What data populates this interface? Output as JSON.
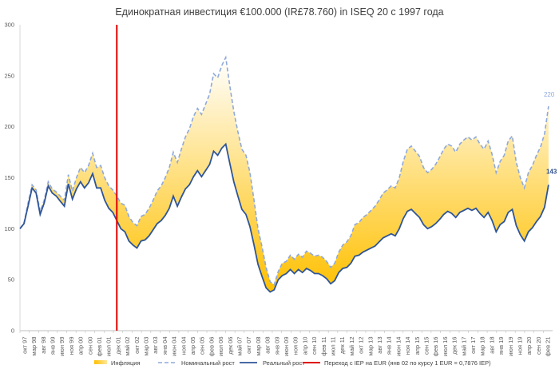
{
  "chart_data": {
    "type": "line",
    "title": "Единократная инвестиция  €100.000 (IR£78.760) in ISEQ 20 с 1997 года",
    "ylim": [
      0,
      300
    ],
    "yticks": [
      "0",
      "50",
      "100",
      "150",
      "200",
      "250",
      "300"
    ],
    "x_tick_labels": [
      "окт 97",
      "мар 98",
      "авг 98",
      "янв 99",
      "июн 99",
      "ноя 99",
      "апр 00",
      "сен 00",
      "фев 01",
      "июл 01",
      "дек 01",
      "май 02",
      "окт 02",
      "мар 03",
      "авг 03",
      "янв 04",
      "июн 04",
      "ноя 04",
      "апр 05",
      "сен 05",
      "фев 06",
      "июл 06",
      "дек 06",
      "май 07",
      "окт 07",
      "мар 08",
      "авг 08",
      "янв 09",
      "июн 09",
      "ноя 09",
      "апр 10",
      "сен 10",
      "фев 11",
      "июл 11",
      "дек 11",
      "май 12",
      "окт 12",
      "мар 13",
      "авг 13",
      "янв 14",
      "июн 14",
      "ноя 14",
      "апр 15",
      "сен 15",
      "фев 16",
      "июл 16",
      "дек 16",
      "май 17",
      "окт 17",
      "мар 18",
      "авг 18",
      "янв 19",
      "июн 19",
      "ноя 19",
      "апр 20",
      "сен 20",
      "фев 21"
    ],
    "series": [
      {
        "name": "Номинальный рост",
        "color": "#8FA9DB",
        "style": "dashed",
        "points": [
          [
            0,
            100
          ],
          [
            2,
            106
          ],
          [
            4,
            125
          ],
          [
            6,
            143
          ],
          [
            8,
            138
          ],
          [
            10,
            117
          ],
          [
            12,
            128
          ],
          [
            14,
            146
          ],
          [
            16,
            139
          ],
          [
            18,
            136
          ],
          [
            20,
            132
          ],
          [
            22,
            128
          ],
          [
            24,
            153
          ],
          [
            26,
            137
          ],
          [
            28,
            150
          ],
          [
            30,
            160
          ],
          [
            32,
            155
          ],
          [
            34,
            162
          ],
          [
            36,
            174
          ],
          [
            38,
            160
          ],
          [
            40,
            162
          ],
          [
            42,
            150
          ],
          [
            44,
            142
          ],
          [
            46,
            138
          ],
          [
            48,
            132
          ],
          [
            50,
            125
          ],
          [
            52,
            123
          ],
          [
            54,
            112
          ],
          [
            56,
            106
          ],
          [
            58,
            103
          ],
          [
            60,
            112
          ],
          [
            62,
            114
          ],
          [
            64,
            120
          ],
          [
            66,
            128
          ],
          [
            68,
            137
          ],
          [
            70,
            142
          ],
          [
            72,
            150
          ],
          [
            74,
            160
          ],
          [
            76,
            175
          ],
          [
            78,
            165
          ],
          [
            80,
            178
          ],
          [
            82,
            190
          ],
          [
            84,
            198
          ],
          [
            86,
            210
          ],
          [
            88,
            218
          ],
          [
            90,
            212
          ],
          [
            92,
            222
          ],
          [
            94,
            232
          ],
          [
            96,
            252
          ],
          [
            98,
            248
          ],
          [
            100,
            260
          ],
          [
            102,
            268
          ],
          [
            104,
            240
          ],
          [
            106,
            215
          ],
          [
            108,
            195
          ],
          [
            110,
            178
          ],
          [
            112,
            172
          ],
          [
            114,
            155
          ],
          [
            116,
            128
          ],
          [
            118,
            100
          ],
          [
            120,
            82
          ],
          [
            122,
            62
          ],
          [
            124,
            48
          ],
          [
            126,
            45
          ],
          [
            128,
            58
          ],
          [
            130,
            66
          ],
          [
            132,
            68
          ],
          [
            134,
            74
          ],
          [
            136,
            70
          ],
          [
            138,
            75
          ],
          [
            140,
            72
          ],
          [
            142,
            78
          ],
          [
            144,
            76
          ],
          [
            146,
            73
          ],
          [
            148,
            74
          ],
          [
            150,
            72
          ],
          [
            152,
            68
          ],
          [
            154,
            62
          ],
          [
            156,
            66
          ],
          [
            158,
            77
          ],
          [
            160,
            84
          ],
          [
            162,
            87
          ],
          [
            164,
            93
          ],
          [
            166,
            104
          ],
          [
            168,
            106
          ],
          [
            170,
            111
          ],
          [
            172,
            114
          ],
          [
            174,
            118
          ],
          [
            176,
            122
          ],
          [
            178,
            128
          ],
          [
            180,
            135
          ],
          [
            182,
            138
          ],
          [
            184,
            142
          ],
          [
            186,
            140
          ],
          [
            188,
            150
          ],
          [
            190,
            166
          ],
          [
            192,
            178
          ],
          [
            194,
            181
          ],
          [
            196,
            176
          ],
          [
            198,
            171
          ],
          [
            200,
            160
          ],
          [
            202,
            155
          ],
          [
            204,
            158
          ],
          [
            206,
            163
          ],
          [
            208,
            170
          ],
          [
            210,
            178
          ],
          [
            212,
            183
          ],
          [
            214,
            181
          ],
          [
            216,
            175
          ],
          [
            218,
            183
          ],
          [
            220,
            187
          ],
          [
            222,
            190
          ],
          [
            224,
            187
          ],
          [
            226,
            190
          ],
          [
            228,
            183
          ],
          [
            230,
            178
          ],
          [
            232,
            186
          ],
          [
            234,
            173
          ],
          [
            236,
            155
          ],
          [
            238,
            166
          ],
          [
            240,
            172
          ],
          [
            242,
            186
          ],
          [
            244,
            191
          ],
          [
            246,
            165
          ],
          [
            248,
            150
          ],
          [
            250,
            140
          ],
          [
            252,
            155
          ],
          [
            254,
            162
          ],
          [
            256,
            172
          ],
          [
            258,
            180
          ],
          [
            260,
            193
          ],
          [
            262,
            220
          ]
        ]
      },
      {
        "name": "Реальный рост",
        "color": "#2F5597",
        "style": "solid",
        "points": [
          [
            0,
            100
          ],
          [
            2,
            105
          ],
          [
            4,
            122
          ],
          [
            6,
            140
          ],
          [
            8,
            135
          ],
          [
            10,
            114
          ],
          [
            12,
            125
          ],
          [
            14,
            142
          ],
          [
            16,
            135
          ],
          [
            18,
            132
          ],
          [
            20,
            127
          ],
          [
            22,
            122
          ],
          [
            24,
            144
          ],
          [
            26,
            129
          ],
          [
            28,
            139
          ],
          [
            30,
            146
          ],
          [
            32,
            140
          ],
          [
            34,
            145
          ],
          [
            36,
            154
          ],
          [
            38,
            140
          ],
          [
            40,
            140
          ],
          [
            42,
            128
          ],
          [
            44,
            120
          ],
          [
            46,
            116
          ],
          [
            48,
            108
          ],
          [
            50,
            100
          ],
          [
            52,
            97
          ],
          [
            54,
            88
          ],
          [
            56,
            84
          ],
          [
            58,
            81
          ],
          [
            60,
            88
          ],
          [
            62,
            89
          ],
          [
            64,
            93
          ],
          [
            66,
            99
          ],
          [
            68,
            105
          ],
          [
            70,
            108
          ],
          [
            72,
            113
          ],
          [
            74,
            120
          ],
          [
            76,
            132
          ],
          [
            78,
            122
          ],
          [
            80,
            131
          ],
          [
            82,
            139
          ],
          [
            84,
            143
          ],
          [
            86,
            151
          ],
          [
            88,
            157
          ],
          [
            90,
            151
          ],
          [
            92,
            157
          ],
          [
            94,
            163
          ],
          [
            96,
            176
          ],
          [
            98,
            172
          ],
          [
            100,
            179
          ],
          [
            102,
            183
          ],
          [
            104,
            164
          ],
          [
            106,
            146
          ],
          [
            108,
            132
          ],
          [
            110,
            119
          ],
          [
            112,
            114
          ],
          [
            114,
            102
          ],
          [
            116,
            84
          ],
          [
            118,
            65
          ],
          [
            120,
            53
          ],
          [
            122,
            42
          ],
          [
            124,
            38
          ],
          [
            126,
            40
          ],
          [
            128,
            50
          ],
          [
            130,
            54
          ],
          [
            132,
            56
          ],
          [
            134,
            60
          ],
          [
            136,
            56
          ],
          [
            138,
            60
          ],
          [
            140,
            57
          ],
          [
            142,
            61
          ],
          [
            144,
            59
          ],
          [
            146,
            56
          ],
          [
            148,
            56
          ],
          [
            150,
            54
          ],
          [
            152,
            51
          ],
          [
            154,
            46
          ],
          [
            156,
            49
          ],
          [
            158,
            57
          ],
          [
            160,
            61
          ],
          [
            162,
            62
          ],
          [
            164,
            66
          ],
          [
            166,
            73
          ],
          [
            168,
            74
          ],
          [
            170,
            77
          ],
          [
            172,
            79
          ],
          [
            174,
            81
          ],
          [
            176,
            83
          ],
          [
            178,
            87
          ],
          [
            180,
            91
          ],
          [
            182,
            93
          ],
          [
            184,
            95
          ],
          [
            186,
            93
          ],
          [
            188,
            100
          ],
          [
            190,
            110
          ],
          [
            192,
            117
          ],
          [
            194,
            119
          ],
          [
            196,
            115
          ],
          [
            198,
            111
          ],
          [
            200,
            104
          ],
          [
            202,
            100
          ],
          [
            204,
            102
          ],
          [
            206,
            105
          ],
          [
            208,
            109
          ],
          [
            210,
            114
          ],
          [
            212,
            117
          ],
          [
            214,
            115
          ],
          [
            216,
            111
          ],
          [
            218,
            116
          ],
          [
            220,
            118
          ],
          [
            222,
            120
          ],
          [
            224,
            118
          ],
          [
            226,
            120
          ],
          [
            228,
            115
          ],
          [
            230,
            111
          ],
          [
            232,
            116
          ],
          [
            234,
            108
          ],
          [
            236,
            97
          ],
          [
            238,
            104
          ],
          [
            240,
            107
          ],
          [
            242,
            116
          ],
          [
            244,
            119
          ],
          [
            246,
            103
          ],
          [
            248,
            94
          ],
          [
            250,
            88
          ],
          [
            252,
            97
          ],
          [
            254,
            101
          ],
          [
            256,
            107
          ],
          [
            258,
            112
          ],
          [
            260,
            121
          ],
          [
            262,
            143
          ]
        ]
      }
    ],
    "fill_label": "Инфляция",
    "fill_colors": [
      "#FFC000",
      "#FFFFFF"
    ],
    "vline": {
      "x": 48,
      "color": "#E00000"
    },
    "end_labels": {
      "nominal": "220",
      "real": "143"
    },
    "legend": [
      {
        "name": "Инфляция",
        "kind": "fill",
        "color": "#FFC000"
      },
      {
        "name": "Номинальный рост",
        "kind": "dashed",
        "color": "#8FA9DB"
      },
      {
        "name": "Реальный рост",
        "kind": "solid",
        "color": "#2F5597"
      },
      {
        "name": "Переход с IEP на EUR (янв 02 по курсу 1 EUR = 0,7876 IEP)",
        "kind": "solid",
        "color": "#E00000"
      }
    ],
    "legend_placement": "bottom",
    "grid": false
  }
}
